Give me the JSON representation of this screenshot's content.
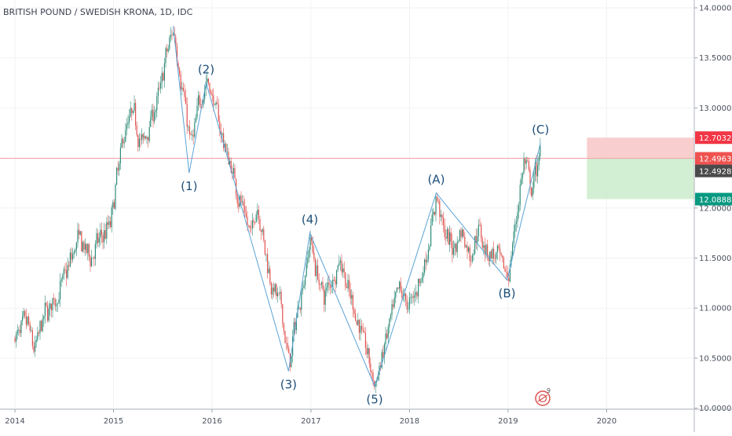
{
  "symbol_title": "BRITISH POUND / SWEDISH KRONA, 1D, IDC",
  "badge": {
    "icon": "tradingview-idea-icon",
    "count": "9"
  },
  "colors": {
    "candle_up": "#2e8b78",
    "candle_down": "#e0524f",
    "wave_line": "#5aa3d6",
    "wave_label": "#1d4e78",
    "price_line": "#f0a0a0",
    "stop_zone": "#f8c6c6",
    "target_zone": "#cbeccb",
    "stop_tag": "#f23645",
    "entry_tag": "#ef5350",
    "current_tag": "#4a4a4a",
    "target_tag": "#089981"
  },
  "chart_data": {
    "type": "candlestick",
    "title": "BRITISH POUND / SWEDISH KRONA, 1D, IDC",
    "x_axis": {
      "ticks": [
        "2014",
        "2015",
        "2016",
        "2017",
        "2018",
        "2019",
        "2020"
      ],
      "range": [
        "2014-01-01",
        "2020-12-31"
      ]
    },
    "y_axis": {
      "ticks": [
        "10.0000",
        "10.5000",
        "11.0000",
        "11.5000",
        "12.0000",
        "12.5000",
        "13.0000",
        "13.5000",
        "14.0000"
      ],
      "range": [
        9.92,
        14.05
      ],
      "position": "right"
    },
    "price_path": [
      [
        "2014-01-01",
        10.7
      ],
      [
        "2014-02-15",
        10.85
      ],
      [
        "2014-03-10",
        10.55
      ],
      [
        "2014-04-20",
        10.95
      ],
      [
        "2014-06-01",
        11.1
      ],
      [
        "2014-07-15",
        11.4
      ],
      [
        "2014-08-20",
        11.7
      ],
      [
        "2014-10-01",
        11.5
      ],
      [
        "2014-11-15",
        11.7
      ],
      [
        "2014-12-20",
        11.85
      ],
      [
        "2015-01-10",
        12.3
      ],
      [
        "2015-02-10",
        12.8
      ],
      [
        "2015-03-15",
        12.95
      ],
      [
        "2015-04-15",
        12.6
      ],
      [
        "2015-05-15",
        12.9
      ],
      [
        "2015-06-15",
        13.1
      ],
      [
        "2015-07-10",
        13.5
      ],
      [
        "2015-08-10",
        13.8
      ],
      [
        "2015-09-10",
        13.2
      ],
      [
        "2015-10-01",
        12.8
      ],
      [
        "2015-10-15",
        12.6
      ],
      [
        "2015-11-15",
        13.1
      ],
      [
        "2015-12-10",
        13.3
      ],
      [
        "2016-01-10",
        13.0
      ],
      [
        "2016-02-15",
        12.6
      ],
      [
        "2016-03-20",
        12.3
      ],
      [
        "2016-04-20",
        12.0
      ],
      [
        "2016-05-20",
        11.7
      ],
      [
        "2016-06-15",
        12.1
      ],
      [
        "2016-07-10",
        11.6
      ],
      [
        "2016-08-10",
        11.2
      ],
      [
        "2016-09-10",
        11.0
      ],
      [
        "2016-10-10",
        10.4
      ],
      [
        "2016-11-10",
        11.0
      ],
      [
        "2016-12-10",
        11.4
      ],
      [
        "2016-12-28",
        11.75
      ],
      [
        "2017-01-15",
        11.4
      ],
      [
        "2017-02-15",
        11.1
      ],
      [
        "2017-03-15",
        11.3
      ],
      [
        "2017-04-20",
        11.5
      ],
      [
        "2017-05-20",
        11.1
      ],
      [
        "2017-06-20",
        10.9
      ],
      [
        "2017-07-20",
        10.6
      ],
      [
        "2017-08-25",
        10.2
      ],
      [
        "2017-09-25",
        10.6
      ],
      [
        "2017-10-25",
        10.9
      ],
      [
        "2017-11-25",
        11.2
      ],
      [
        "2017-12-25",
        11.0
      ],
      [
        "2018-01-25",
        11.2
      ],
      [
        "2018-03-01",
        11.5
      ],
      [
        "2018-04-10",
        12.15
      ],
      [
        "2018-05-10",
        11.7
      ],
      [
        "2018-06-10",
        11.6
      ],
      [
        "2018-07-10",
        11.8
      ],
      [
        "2018-08-10",
        11.5
      ],
      [
        "2018-09-10",
        11.8
      ],
      [
        "2018-10-10",
        11.6
      ],
      [
        "2018-11-15",
        11.5
      ],
      [
        "2018-12-28",
        11.3
      ],
      [
        "2019-01-20",
        11.7
      ],
      [
        "2019-02-10",
        12.2
      ],
      [
        "2019-03-01",
        12.5
      ],
      [
        "2019-03-25",
        12.1
      ],
      [
        "2019-04-15",
        12.4
      ],
      [
        "2019-05-01",
        12.65
      ]
    ],
    "elliott_waves": [
      {
        "label": "(1)",
        "date": "2015-10-08",
        "value": 12.35,
        "label_pos": "below"
      },
      {
        "label": "(2)",
        "date": "2015-12-10",
        "value": 13.25,
        "label_pos": "above"
      },
      {
        "label": "(3)",
        "date": "2016-10-10",
        "value": 10.37,
        "label_pos": "below"
      },
      {
        "label": "(4)",
        "date": "2016-12-28",
        "value": 11.75,
        "label_pos": "above"
      },
      {
        "label": "(5)",
        "date": "2017-08-25",
        "value": 10.22,
        "label_pos": "below"
      },
      {
        "label": "(A)",
        "date": "2018-04-10",
        "value": 12.15,
        "label_pos": "above"
      },
      {
        "label": "(B)",
        "date": "2018-12-28",
        "value": 11.28,
        "label_pos": "below"
      },
      {
        "label": "(C)",
        "date": "2019-05-01",
        "value": 12.65,
        "label_pos": "above"
      }
    ],
    "wave_start": {
      "date": "2015-08-10",
      "value": 13.82
    },
    "horizontal_line": 12.4963,
    "position_box": {
      "from": "2019-10-20",
      "to": "2020-12-31",
      "stop": 12.7032,
      "entry": 12.4963,
      "target": 12.0888
    },
    "price_tags": [
      {
        "label": "12.7032",
        "value": 12.7032,
        "role": "stop"
      },
      {
        "label": "12.4963",
        "value": 12.4963,
        "role": "entry"
      },
      {
        "label": "12.4928",
        "value": 12.4928,
        "role": "current"
      },
      {
        "label": "12.0888",
        "value": 12.0888,
        "role": "target"
      }
    ]
  }
}
